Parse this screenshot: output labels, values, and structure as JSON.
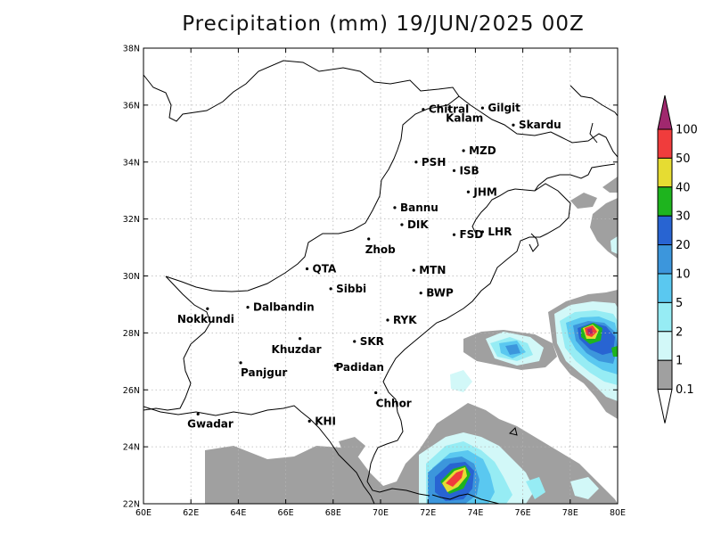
{
  "title": "Precipitation (mm) 19/JUN/2025 00Z",
  "map": {
    "lon_range": [
      60,
      80
    ],
    "lat_range": [
      22,
      38
    ],
    "x_ticks": [
      "60E",
      "62E",
      "64E",
      "66E",
      "68E",
      "70E",
      "72E",
      "74E",
      "76E",
      "78E",
      "80E"
    ],
    "y_ticks": [
      "22N",
      "24N",
      "26N",
      "28N",
      "30N",
      "32N",
      "34N",
      "36N",
      "38N"
    ],
    "grid": "dotted"
  },
  "cities": [
    {
      "name": "Chitral",
      "lon": 71.8,
      "lat": 35.85
    },
    {
      "name": "Gilgit",
      "lon": 74.3,
      "lat": 35.9
    },
    {
      "name": "Kalam",
      "lon": 72.9,
      "lat": 35.85
    },
    {
      "name": "Skardu",
      "lon": 75.6,
      "lat": 35.3
    },
    {
      "name": "MZD",
      "lon": 73.5,
      "lat": 34.4
    },
    {
      "name": "PSH",
      "lon": 71.5,
      "lat": 34.0
    },
    {
      "name": "ISB",
      "lon": 73.1,
      "lat": 33.7
    },
    {
      "name": "JHM",
      "lon": 73.7,
      "lat": 32.95
    },
    {
      "name": "Bannu",
      "lon": 70.6,
      "lat": 32.4
    },
    {
      "name": "DIK",
      "lon": 70.9,
      "lat": 31.8
    },
    {
      "name": "FSD",
      "lon": 73.1,
      "lat": 31.45
    },
    {
      "name": "LHR",
      "lon": 74.3,
      "lat": 31.55
    },
    {
      "name": "Zhob",
      "lon": 69.5,
      "lat": 31.3
    },
    {
      "name": "QTA",
      "lon": 66.9,
      "lat": 30.25
    },
    {
      "name": "MTN",
      "lon": 71.4,
      "lat": 30.2
    },
    {
      "name": "Sibbi",
      "lon": 67.9,
      "lat": 29.55
    },
    {
      "name": "BWP",
      "lon": 71.7,
      "lat": 29.4
    },
    {
      "name": "Nokkundi",
      "lon": 62.7,
      "lat": 28.85
    },
    {
      "name": "Dalbandin",
      "lon": 64.4,
      "lat": 28.9
    },
    {
      "name": "RYK",
      "lon": 70.3,
      "lat": 28.45
    },
    {
      "name": "Khuzdar",
      "lon": 66.6,
      "lat": 27.8
    },
    {
      "name": "SKR",
      "lon": 68.9,
      "lat": 27.7
    },
    {
      "name": "Panjgur",
      "lon": 64.1,
      "lat": 26.95
    },
    {
      "name": "Padidan",
      "lon": 68.1,
      "lat": 26.85
    },
    {
      "name": "Chhor",
      "lon": 69.8,
      "lat": 25.9
    },
    {
      "name": "KHI",
      "lon": 67.0,
      "lat": 24.9
    },
    {
      "name": "Gwadar",
      "lon": 62.3,
      "lat": 25.15
    }
  ],
  "colorbar": {
    "levels": [
      "0.1",
      "1",
      "2",
      "5",
      "10",
      "20",
      "30",
      "40",
      "50",
      "100"
    ],
    "colors": [
      "#a0a0a0",
      "#d2f8f8",
      "#96ecf4",
      "#5ac8f0",
      "#3c96dc",
      "#2864d2",
      "#1eb41e",
      "#e6dc32",
      "#f03c3c",
      "#a0286e"
    ]
  }
}
